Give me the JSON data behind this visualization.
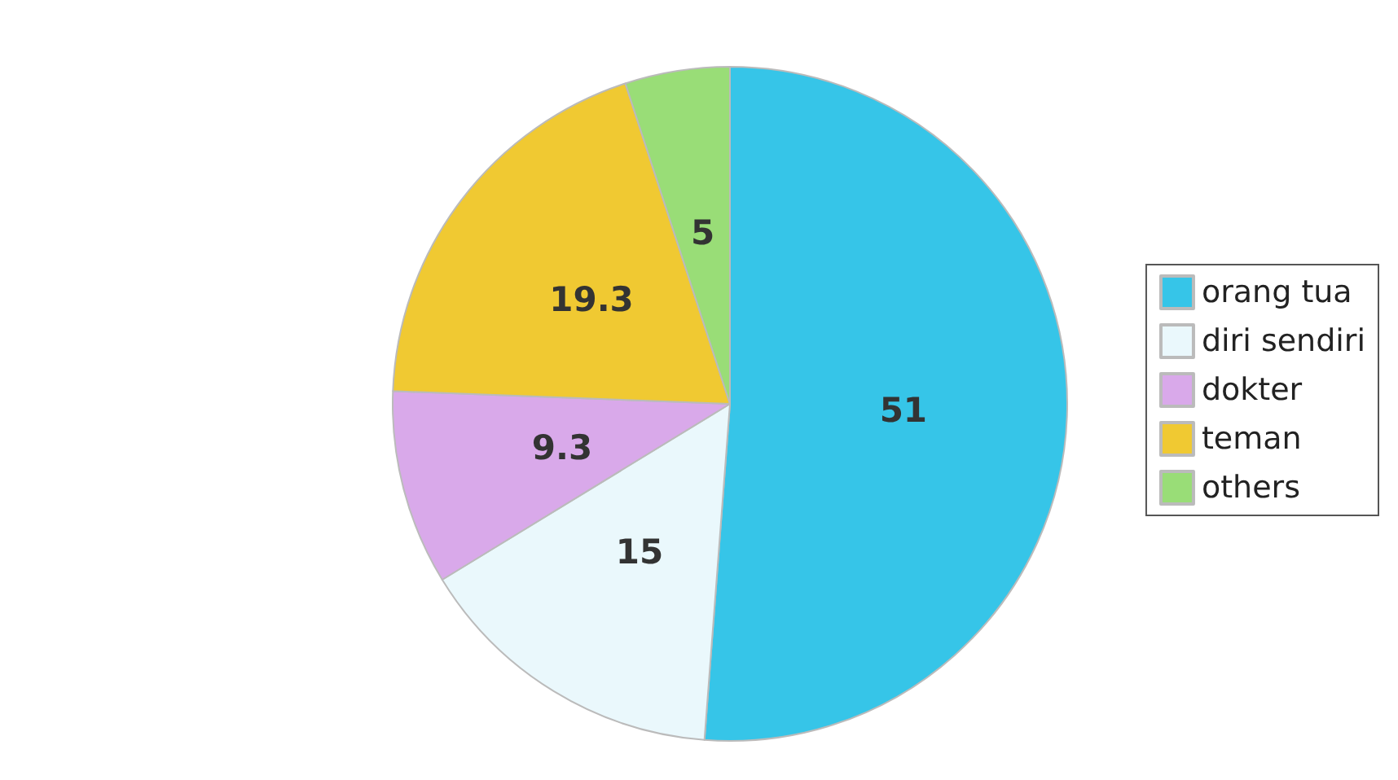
{
  "chart_data": {
    "type": "pie",
    "categories": [
      "orang tua",
      "diri sendiri",
      "dokter",
      "teman",
      "others"
    ],
    "values": [
      51,
      15,
      9.3,
      19.3,
      5
    ],
    "colors": [
      "#36c5e8",
      "#eaf8fc",
      "#d9a9ea",
      "#f0c932",
      "#99dd77"
    ],
    "data_labels": true,
    "legend": "right"
  }
}
